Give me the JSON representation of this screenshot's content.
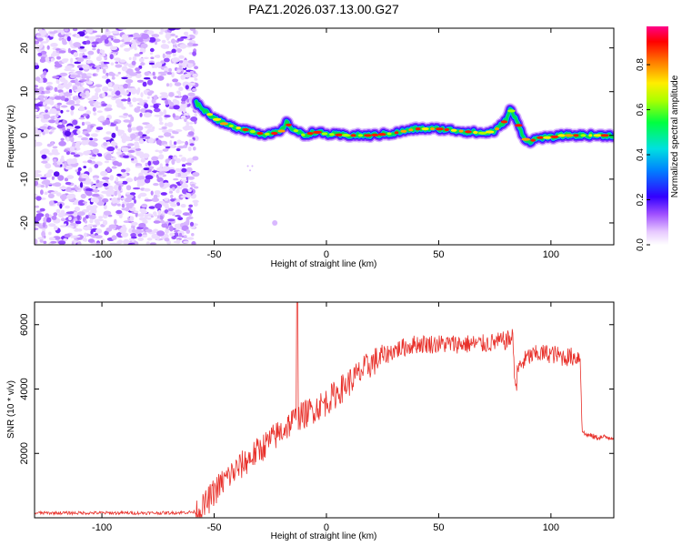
{
  "chart_data": [
    {
      "type": "heatmap",
      "title": "PAZ1.2026.037.13.00.G27",
      "xlabel": "Height of straight line (km)",
      "ylabel": "Frequency (Hz)",
      "xlim": [
        -130,
        128
      ],
      "ylim": [
        -25,
        24.5
      ],
      "xticks": [
        -100,
        -50,
        0,
        50,
        100
      ],
      "yticks": [
        -20,
        -10,
        0,
        10,
        20
      ],
      "noise_region_x": [
        -130,
        -58
      ],
      "noise_frequency_range": [
        -25,
        24.5
      ],
      "ridge_x": [
        -58,
        -55,
        -50,
        -45,
        -40,
        -35,
        -30,
        -25,
        -20,
        -18,
        -15,
        -10,
        -5,
        0,
        10,
        20,
        30,
        40,
        50,
        60,
        70,
        75,
        80,
        82,
        85,
        88,
        90,
        95,
        100,
        105,
        110,
        115,
        120,
        128
      ],
      "ridge_hz": [
        7.5,
        6.0,
        4.0,
        2.5,
        1.8,
        1.2,
        0.5,
        0.2,
        1.0,
        3.0,
        1.5,
        0.0,
        0.8,
        0.3,
        0.0,
        0.0,
        0.5,
        1.5,
        1.5,
        1.0,
        0.5,
        1.0,
        3.5,
        6.0,
        3.0,
        -0.5,
        -1.5,
        -0.5,
        -0.5,
        0.0,
        0.0,
        0.0,
        0.0,
        0.0
      ],
      "colorbar": {
        "label": "Normalized spectral amplitude",
        "ticks": [
          "0.0",
          "0.2",
          "0.4",
          "0.6",
          "0.8"
        ],
        "range": [
          0,
          0.97
        ]
      }
    },
    {
      "type": "line",
      "xlabel": "Height of straight line (km)",
      "ylabel": "SNR (10 * v/v)",
      "xlim": [
        -130,
        128
      ],
      "ylim": [
        0,
        6700
      ],
      "xticks": [
        -100,
        -50,
        0,
        50,
        100
      ],
      "yticks": [
        2000,
        4000,
        6000
      ],
      "color": "#e8302a",
      "series": [
        {
          "name": "SNR",
          "x": [
            -130,
            -100,
            -70,
            -58,
            -55,
            -50,
            -45,
            -40,
            -35,
            -30,
            -25,
            -20,
            -15,
            -10,
            -5,
            0,
            5,
            10,
            15,
            20,
            25,
            30,
            40,
            50,
            60,
            70,
            75,
            80,
            83,
            84,
            85,
            87,
            90,
            95,
            100,
            105,
            110,
            113,
            114,
            115,
            120,
            128
          ],
          "y": [
            150,
            150,
            150,
            180,
            300,
            800,
            1200,
            1500,
            1800,
            2100,
            2400,
            2700,
            3000,
            3200,
            3400,
            3600,
            3900,
            4200,
            4500,
            4800,
            5000,
            5200,
            5400,
            5400,
            5400,
            5400,
            5450,
            5500,
            5600,
            4300,
            4600,
            4800,
            5000,
            5100,
            5100,
            5000,
            5000,
            5000,
            2700,
            2600,
            2500,
            2500
          ]
        }
      ],
      "spike": {
        "x": -13,
        "y": 6700
      },
      "noise_amp": {
        "quiet": 50,
        "rising": 450,
        "plateau": 300,
        "low": 90
      }
    }
  ]
}
